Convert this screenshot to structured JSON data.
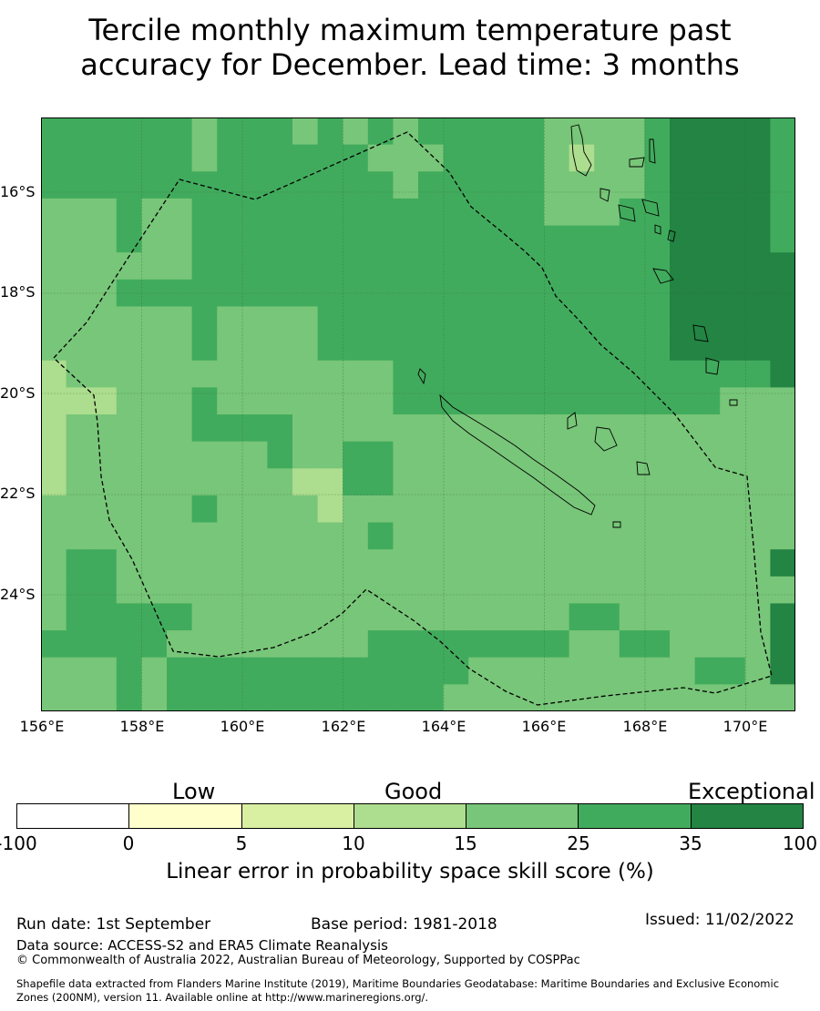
{
  "title": {
    "line1": "Tercile monthly maximum temperature past",
    "line2": "accuracy for December. Lead time: 3 months"
  },
  "map": {
    "lat_ticks": [
      "16°S",
      "18°S",
      "20°S",
      "22°S",
      "24°S"
    ],
    "lon_ticks": [
      "156°E",
      "158°E",
      "160°E",
      "162°E",
      "164°E",
      "166°E",
      "168°E",
      "170°E"
    ]
  },
  "legend": {
    "categories": [
      "Low",
      "Good",
      "Exceptional"
    ],
    "ticks": [
      "-100",
      "0",
      "5",
      "10",
      "15",
      "25",
      "35",
      "100"
    ],
    "colors": [
      "#ffffff",
      "#ffffcc",
      "#d9f0a3",
      "#addd8e",
      "#78c679",
      "#41ab5d",
      "#238443"
    ],
    "caption": "Linear error in probability space skill score (%)"
  },
  "footer": {
    "run_date": "Run date: 1st September",
    "base_period": "Base period: 1981-2018",
    "issued": "Issued: 11/02/2022",
    "data_source": "Data source: ACCESS-S2 and ERA5 Climate Reanalysis",
    "copyright": "© Commonwealth of Australia 2022, Australian Bureau of Meteorology, Supported by COSPPac",
    "shapefile_1": "Shapefile data extracted from Flanders Marine Institute (2019), Maritime Boundaries Geodatabase: Maritime Boundaries and Exclusive Economic",
    "shapefile_2": "Zones (200NM), version 11. Available online at http://www.marineregions.org/."
  }
}
